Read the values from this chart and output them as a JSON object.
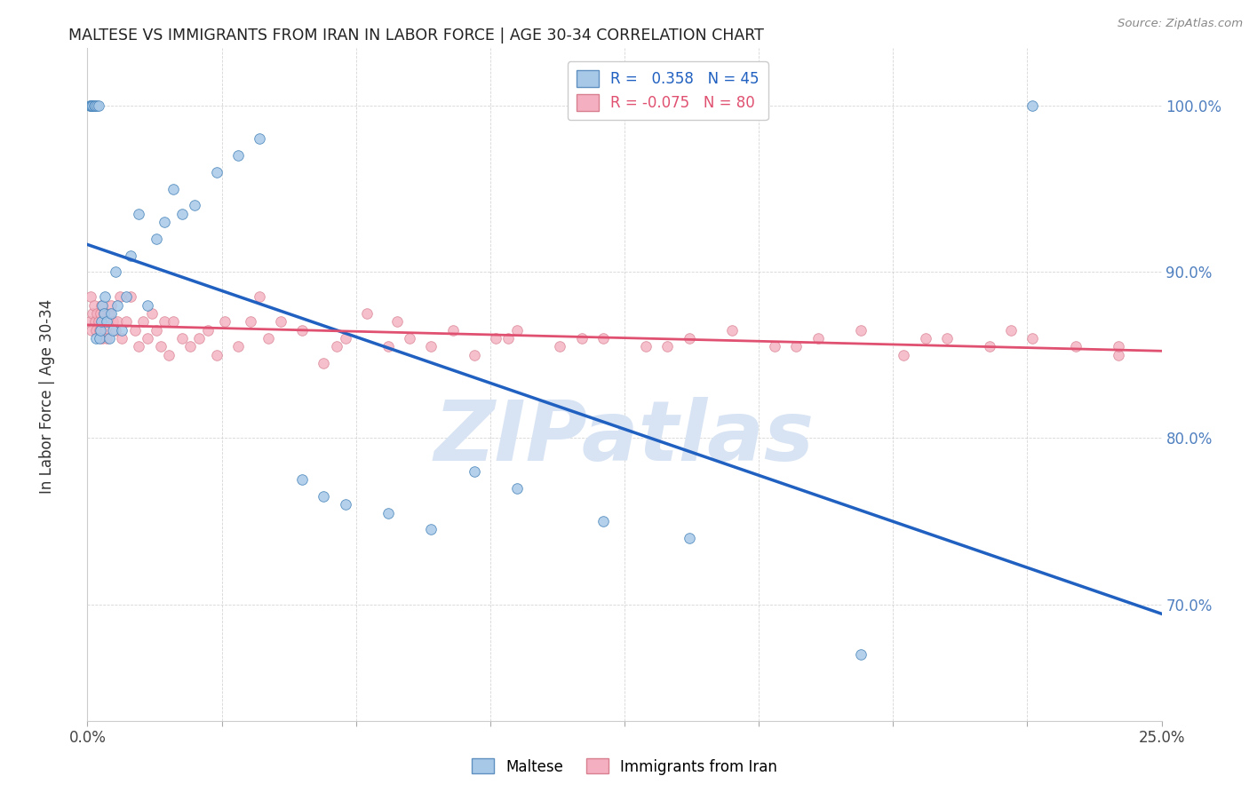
{
  "title": "MALTESE VS IMMIGRANTS FROM IRAN IN LABOR FORCE | AGE 30-34 CORRELATION CHART",
  "source": "Source: ZipAtlas.com",
  "ylabel_label": "In Labor Force | Age 30-34",
  "xmin": 0.0,
  "xmax": 25.0,
  "ymin": 63.0,
  "ymax": 103.5,
  "r_maltese": 0.358,
  "n_maltese": 45,
  "r_iran": -0.075,
  "n_iran": 80,
  "color_maltese": "#a8c8e8",
  "color_iran": "#f4b0c0",
  "color_line_maltese": "#2060c0",
  "color_line_iran": "#e05070",
  "watermark": "ZIPatlas",
  "watermark_color": "#d8e4f4",
  "legend_label_maltese": "Maltese",
  "legend_label_iran": "Immigrants from Iran",
  "maltese_x": [
    0.05,
    0.08,
    0.1,
    0.12,
    0.15,
    0.18,
    0.2,
    0.22,
    0.25,
    0.28,
    0.3,
    0.32,
    0.35,
    0.38,
    0.4,
    0.45,
    0.5,
    0.55,
    0.6,
    0.65,
    0.7,
    0.8,
    0.9,
    1.0,
    1.2,
    1.4,
    1.6,
    1.8,
    2.0,
    2.2,
    2.5,
    3.0,
    3.5,
    4.0,
    5.0,
    5.5,
    6.0,
    7.0,
    8.0,
    9.0,
    10.0,
    12.0,
    14.0,
    18.0,
    22.0
  ],
  "maltese_y": [
    100.0,
    100.0,
    100.0,
    100.0,
    100.0,
    100.0,
    86.0,
    100.0,
    100.0,
    86.0,
    86.5,
    87.0,
    88.0,
    87.5,
    88.5,
    87.0,
    86.0,
    87.5,
    86.5,
    90.0,
    88.0,
    86.5,
    88.5,
    91.0,
    93.5,
    88.0,
    92.0,
    93.0,
    95.0,
    93.5,
    94.0,
    96.0,
    97.0,
    98.0,
    77.5,
    76.5,
    76.0,
    75.5,
    74.5,
    78.0,
    77.0,
    75.0,
    74.0,
    67.0,
    100.0
  ],
  "iran_x": [
    0.05,
    0.08,
    0.1,
    0.12,
    0.15,
    0.18,
    0.2,
    0.22,
    0.25,
    0.28,
    0.3,
    0.32,
    0.35,
    0.38,
    0.4,
    0.45,
    0.5,
    0.55,
    0.6,
    0.65,
    0.7,
    0.75,
    0.8,
    0.9,
    1.0,
    1.1,
    1.2,
    1.3,
    1.4,
    1.5,
    1.6,
    1.7,
    1.8,
    1.9,
    2.0,
    2.2,
    2.4,
    2.6,
    2.8,
    3.0,
    3.2,
    3.5,
    4.0,
    4.5,
    5.0,
    5.5,
    6.0,
    6.5,
    7.0,
    7.5,
    8.0,
    8.5,
    9.0,
    9.5,
    10.0,
    11.0,
    12.0,
    13.0,
    14.0,
    15.0,
    16.0,
    17.0,
    18.0,
    19.0,
    20.0,
    21.0,
    22.0,
    23.0,
    24.0,
    3.8,
    4.2,
    5.8,
    7.2,
    9.8,
    11.5,
    13.5,
    16.5,
    19.5,
    21.5,
    24.0
  ],
  "iran_y": [
    87.0,
    88.5,
    86.5,
    87.5,
    88.0,
    87.0,
    86.5,
    87.5,
    87.0,
    86.5,
    87.5,
    88.0,
    86.0,
    87.5,
    86.5,
    86.0,
    87.5,
    88.0,
    87.0,
    86.5,
    87.0,
    88.5,
    86.0,
    87.0,
    88.5,
    86.5,
    85.5,
    87.0,
    86.0,
    87.5,
    86.5,
    85.5,
    87.0,
    85.0,
    87.0,
    86.0,
    85.5,
    86.0,
    86.5,
    85.0,
    87.0,
    85.5,
    88.5,
    87.0,
    86.5,
    84.5,
    86.0,
    87.5,
    85.5,
    86.0,
    85.5,
    86.5,
    85.0,
    86.0,
    86.5,
    85.5,
    86.0,
    85.5,
    86.0,
    86.5,
    85.5,
    86.0,
    86.5,
    85.0,
    86.0,
    85.5,
    86.0,
    85.5,
    85.0,
    87.0,
    86.0,
    85.5,
    87.0,
    86.0,
    86.0,
    85.5,
    85.5,
    86.0,
    86.5,
    85.5
  ],
  "ytick_vals": [
    70.0,
    80.0,
    90.0,
    100.0
  ],
  "xtick_positions": [
    0.0,
    3.125,
    6.25,
    9.375,
    12.5,
    15.625,
    18.75,
    21.875,
    25.0
  ]
}
